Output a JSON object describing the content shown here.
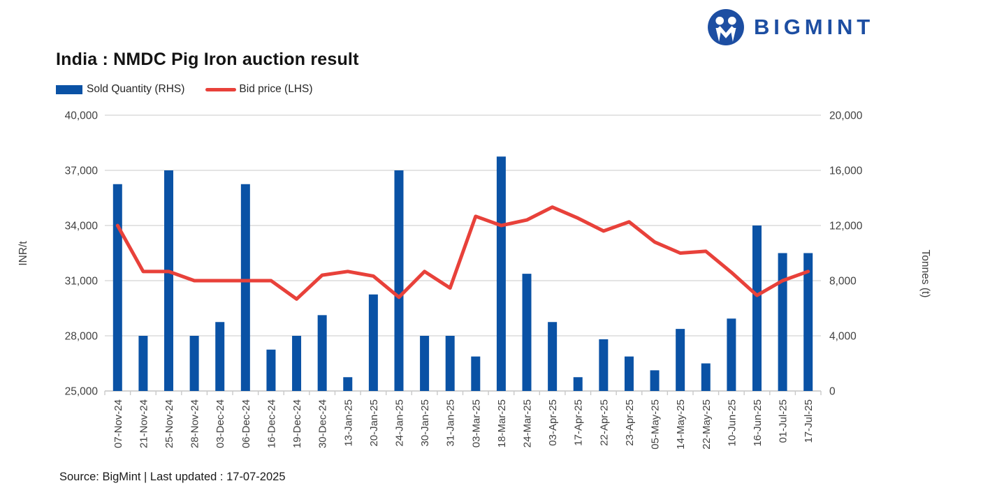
{
  "header": {
    "title": "India : NMDC Pig Iron auction result",
    "brand": "BIGMINT",
    "brand_color": "#1D4EA2"
  },
  "legend": [
    {
      "label": "Sold Quantity (RHS)",
      "type": "bar",
      "color": "#0A52A5"
    },
    {
      "label": "Bid price (LHS)",
      "type": "line",
      "color": "#E8413A"
    }
  ],
  "footer": {
    "source_text": "Source: BigMint | Last updated : 17-07-2025"
  },
  "chart_data": {
    "type": "bar",
    "subtype": "combo-bar-line",
    "title": "India : NMDC Pig Iron auction result",
    "grid": true,
    "legend_position": "top-left",
    "categories": [
      "07-Nov-24",
      "21-Nov-24",
      "25-Nov-24",
      "28-Nov-24",
      "03-Dec-24",
      "06-Dec-24",
      "16-Dec-24",
      "19-Dec-24",
      "30-Dec-24",
      "13-Jan-25",
      "20-Jan-25",
      "24-Jan-25",
      "30-Jan-25",
      "31-Jan-25",
      "03-Mar-25",
      "18-Mar-25",
      "24-Mar-25",
      "03-Apr-25",
      "17-Apr-25",
      "22-Apr-25",
      "23-Apr-25",
      "05-May-25",
      "14-May-25",
      "22-May-25",
      "10-Jun-25",
      "16-Jun-25",
      "01-Jul-25",
      "17-Jul-25"
    ],
    "series": [
      {
        "name": "Sold Quantity (RHS)",
        "type": "bar",
        "axis": "right",
        "color": "#0A52A5",
        "values": [
          15000,
          4000,
          16000,
          4000,
          5000,
          15000,
          3000,
          4000,
          5500,
          1000,
          7000,
          16000,
          4000,
          4000,
          2500,
          17000,
          8500,
          5000,
          1000,
          3750,
          2500,
          1500,
          4500,
          2000,
          5250,
          12000,
          10000,
          10000
        ]
      },
      {
        "name": "Bid price (LHS)",
        "type": "line",
        "axis": "left",
        "color": "#E8413A",
        "values": [
          34000,
          31500,
          31500,
          31000,
          31000,
          31000,
          31000,
          30000,
          31300,
          31500,
          31250,
          30100,
          31500,
          30600,
          34500,
          34000,
          34300,
          35000,
          34400,
          33700,
          34200,
          33100,
          32500,
          32600,
          31450,
          30200,
          31000,
          31500
        ]
      }
    ],
    "left_axis": {
      "title": "INR/t",
      "min": 25000,
      "max": 40000,
      "ticks": [
        25000,
        28000,
        31000,
        34000,
        37000,
        40000
      ]
    },
    "right_axis": {
      "title": "Tonnes (t)",
      "min": 0,
      "max": 20000,
      "ticks": [
        0,
        4000,
        8000,
        12000,
        16000,
        20000
      ]
    }
  }
}
